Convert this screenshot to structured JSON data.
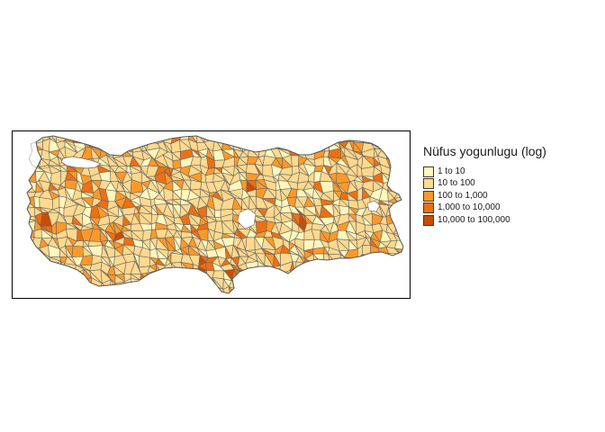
{
  "map": {
    "region": "Turkey",
    "unit": "district",
    "coloring": "choropleth",
    "scale": "log",
    "frame": true,
    "border_color": "#666666",
    "water_color": "#ffffff"
  },
  "legend": {
    "title": "Nüfus yogunlugu (log)",
    "placement": "right",
    "items": [
      {
        "label": "1 to 10",
        "color": "#fff7bc"
      },
      {
        "label": "10 to 100",
        "color": "#fed98e"
      },
      {
        "label": "100 to 1,000",
        "color": "#fe9929"
      },
      {
        "label": "1,000 to 10,000",
        "color": "#ec7014"
      },
      {
        "label": "10,000 to 100,000",
        "color": "#cc4c02"
      }
    ]
  }
}
